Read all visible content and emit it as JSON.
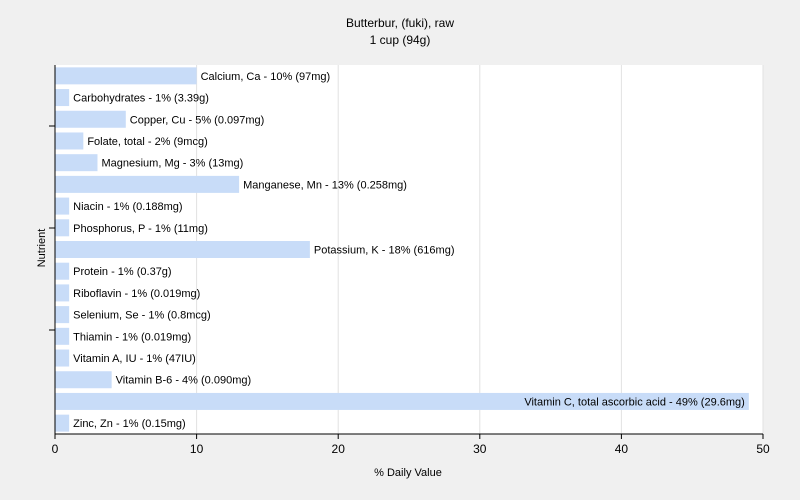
{
  "chart_data": {
    "type": "bar",
    "orientation": "horizontal",
    "title": "Butterbur, (fuki), raw",
    "subtitle": "1 cup (94g)",
    "xlabel": "% Daily Value",
    "ylabel": "Nutrient",
    "xlim": [
      0,
      50
    ],
    "xticks": [
      0,
      10,
      20,
      30,
      40,
      50
    ],
    "grid": true,
    "bar_color": "#c8dcf8",
    "background_color": "#f0f0f0",
    "plot_background_color": "#ffffff",
    "categories": [
      "Calcium, Ca",
      "Carbohydrates",
      "Copper, Cu",
      "Folate, total",
      "Magnesium, Mg",
      "Manganese, Mn",
      "Niacin",
      "Phosphorus, P",
      "Potassium, K",
      "Protein",
      "Riboflavin",
      "Selenium, Se",
      "Thiamin",
      "Vitamin A, IU",
      "Vitamin B-6",
      "Vitamin C, total ascorbic acid",
      "Zinc, Zn"
    ],
    "values": [
      10,
      1,
      5,
      2,
      3,
      13,
      1,
      1,
      18,
      1,
      1,
      1,
      1,
      1,
      4,
      49,
      1
    ],
    "labels": [
      "Calcium, Ca - 10% (97mg)",
      "Carbohydrates - 1% (3.39g)",
      "Copper, Cu - 5% (0.097mg)",
      "Folate, total - 2% (9mcg)",
      "Magnesium, Mg - 3% (13mg)",
      "Manganese, Mn - 13% (0.258mg)",
      "Niacin - 1% (0.188mg)",
      "Phosphorus, P - 1% (11mg)",
      "Potassium, K - 18% (616mg)",
      "Protein - 1% (0.37g)",
      "Riboflavin - 1% (0.019mg)",
      "Selenium, Se - 1% (0.8mcg)",
      "Thiamin - 1% (0.019mg)",
      "Vitamin A, IU - 1% (47IU)",
      "Vitamin B-6 - 4% (0.090mg)",
      "Vitamin C, total ascorbic acid - 49% (29.6mg)",
      "Zinc, Zn - 1% (0.15mg)"
    ]
  }
}
